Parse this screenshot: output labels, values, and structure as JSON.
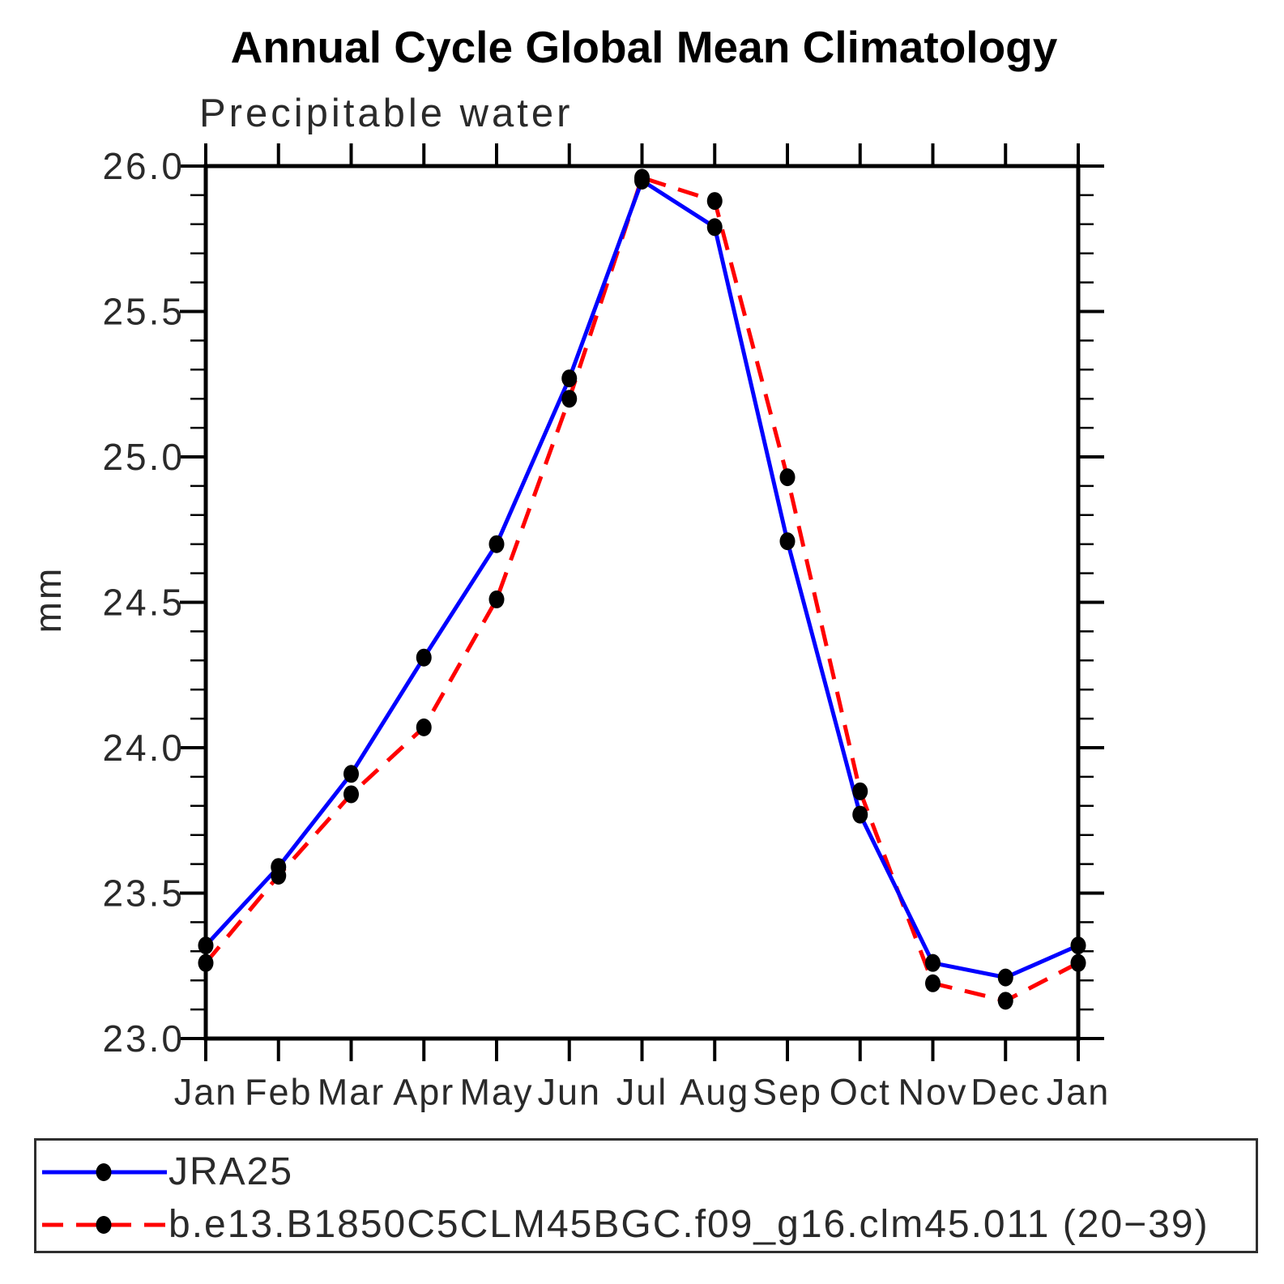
{
  "chart_data": {
    "type": "line",
    "title": "Annual Cycle Global Mean Climatology",
    "subtitle": "Precipitable water",
    "ylabel": "mm",
    "xlabel": "",
    "categories": [
      "Jan",
      "Feb",
      "Mar",
      "Apr",
      "May",
      "Jun",
      "Jul",
      "Aug",
      "Sep",
      "Oct",
      "Nov",
      "Dec",
      "Jan"
    ],
    "ylim": [
      23.0,
      26.0
    ],
    "ytick_major": [
      23.0,
      23.5,
      24.0,
      24.5,
      25.0,
      25.5,
      26.0
    ],
    "ytick_major_labels": [
      "23.0",
      "23.5",
      "24.0",
      "24.5",
      "25.0",
      "25.5",
      "26.0"
    ],
    "ytick_minor_step": 0.1,
    "grid": false,
    "legend_position": "bottom-left-box",
    "axis_color": "#000000",
    "marker_shape": "filled-circle",
    "series": [
      {
        "name": "JRA25",
        "color": "#0000ff",
        "line_style": "solid",
        "marker_color": "#000000",
        "values": [
          23.32,
          23.59,
          23.91,
          24.31,
          24.7,
          25.27,
          25.95,
          25.79,
          24.71,
          23.77,
          23.26,
          23.21,
          23.32
        ]
      },
      {
        "name": "b.e13.B1850C5CLM45BGC.f09_g16.clm45.011 (20−39)",
        "color": "#ff0000",
        "line_style": "dashed",
        "marker_color": "#000000",
        "values": [
          23.26,
          23.56,
          23.84,
          24.07,
          24.51,
          25.2,
          25.96,
          25.88,
          24.93,
          23.85,
          23.19,
          23.13,
          23.26
        ]
      }
    ]
  }
}
